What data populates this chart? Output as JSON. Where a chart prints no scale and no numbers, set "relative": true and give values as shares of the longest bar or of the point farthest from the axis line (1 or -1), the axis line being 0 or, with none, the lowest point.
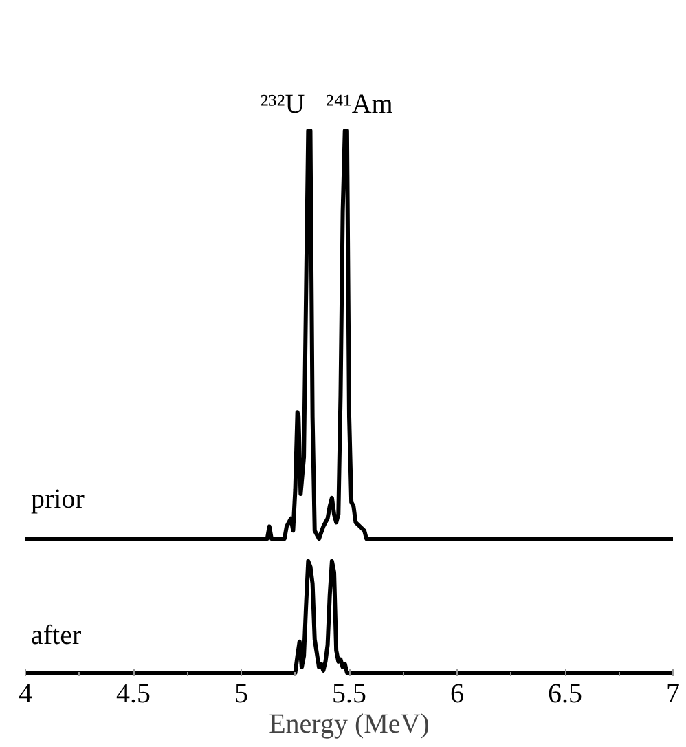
{
  "chart_data": [
    {
      "type": "line",
      "relative": true,
      "xlim": [
        4,
        7
      ],
      "tick_labels": false,
      "grid": false,
      "legend": false,
      "marker": "none",
      "line_style": "solid",
      "annotations": [
        {
          "text": "²³²U",
          "x": 5.32,
          "y": 1
        },
        {
          "text": "²⁴¹Am",
          "x": 5.48,
          "y": 1
        }
      ],
      "series": [
        {
          "name": "prior",
          "color": "#000000",
          "x": [
            4,
            5.12,
            5.13,
            5.14,
            5.2,
            5.21,
            5.23,
            5.24,
            5.25,
            5.26,
            5.265,
            5.275,
            5.29,
            5.3,
            5.31,
            5.32,
            5.33,
            5.34,
            5.36,
            5.38,
            5.4,
            5.41,
            5.42,
            5.43,
            5.44,
            5.45,
            5.46,
            5.47,
            5.48,
            5.49,
            5.5,
            5.51,
            5.52,
            5.53,
            5.55,
            5.57,
            5.58,
            7
          ],
          "values": [
            0,
            0,
            0.03,
            0,
            0,
            0.03,
            0.05,
            0.02,
            0.12,
            0.31,
            0.3,
            0.11,
            0.2,
            0.6,
            1,
            1,
            0.3,
            0.02,
            0,
            0.03,
            0.05,
            0.08,
            0.1,
            0.06,
            0.04,
            0.06,
            0.35,
            0.8,
            1,
            1,
            0.3,
            0.09,
            0.08,
            0.04,
            0.03,
            0.02,
            0,
            0
          ]
        }
      ]
    },
    {
      "type": "line",
      "relative": true,
      "xlim": [
        4,
        7
      ],
      "xticks": [
        4,
        4.5,
        5,
        5.5,
        6,
        6.5,
        7
      ],
      "xlabel": "Energy (MeV)",
      "tick_labels": "x",
      "grid": false,
      "legend": false,
      "marker": "none",
      "line_style": "solid",
      "series": [
        {
          "name": "after",
          "color": "#000000",
          "x": [
            4,
            5.25,
            5.26,
            5.27,
            5.28,
            5.29,
            5.3,
            5.31,
            5.32,
            5.33,
            5.34,
            5.36,
            5.37,
            5.38,
            5.39,
            5.4,
            5.41,
            5.42,
            5.43,
            5.44,
            5.45,
            5.46,
            5.47,
            5.48,
            5.49,
            7
          ],
          "values": [
            0,
            0,
            0.15,
            0.28,
            0.05,
            0.15,
            0.6,
            1,
            0.95,
            0.8,
            0.3,
            0.05,
            0.08,
            0.02,
            0.1,
            0.25,
            0.7,
            1,
            0.9,
            0.2,
            0.1,
            0.12,
            0.05,
            0.08,
            0,
            0
          ]
        }
      ]
    }
  ]
}
